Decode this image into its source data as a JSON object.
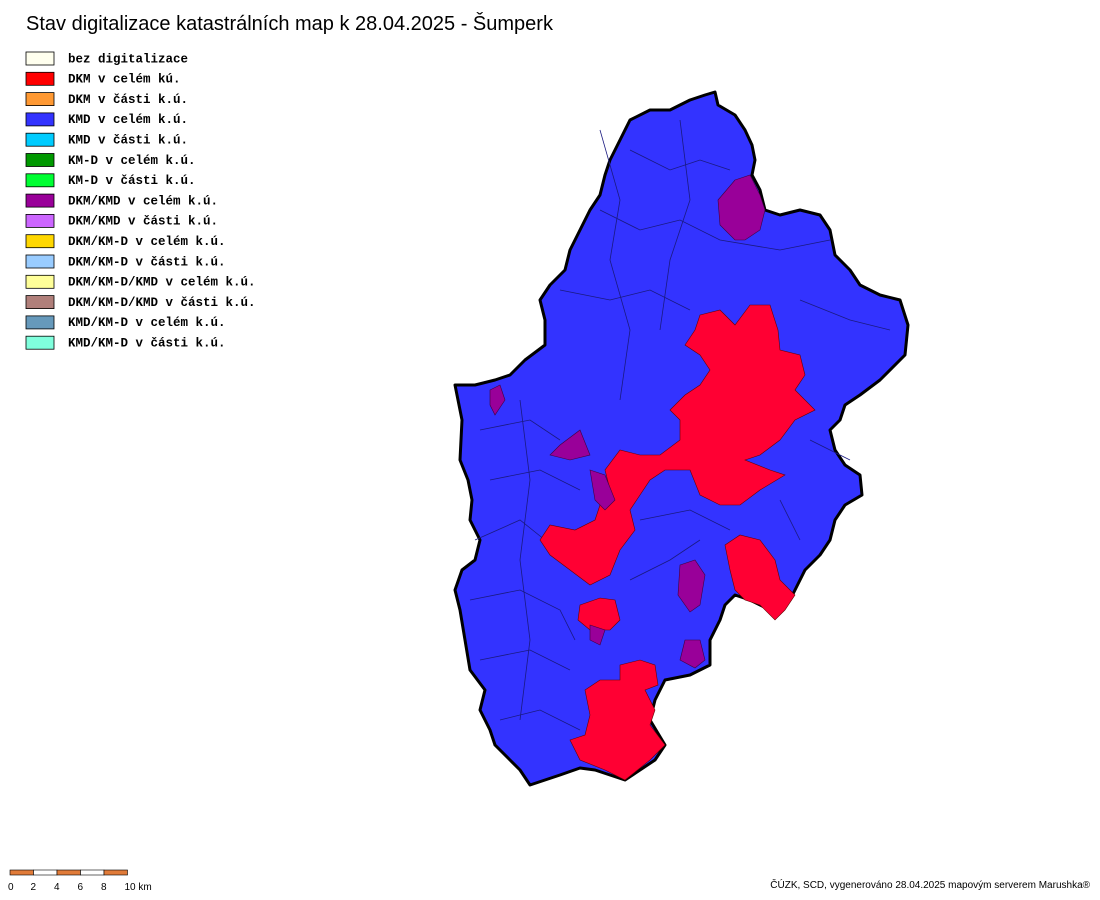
{
  "title": "Stav digitalizace katastrálních map k 28.04.2025 - Šumperk",
  "legend": [
    {
      "label": "bez digitalizace",
      "color": "#ffffee"
    },
    {
      "label": "DKM v celém kú.",
      "color": "#ff0000"
    },
    {
      "label": "DKM v části k.ú.",
      "color": "#ff9933"
    },
    {
      "label": "KMD v celém k.ú.",
      "color": "#3333ff"
    },
    {
      "label": "KMD v části k.ú.",
      "color": "#00ccff"
    },
    {
      "label": "KM-D v celém k.ú.",
      "color": "#009900"
    },
    {
      "label": "KM-D v části k.ú.",
      "color": "#00ff33"
    },
    {
      "label": "DKM/KMD v celém k.ú.",
      "color": "#990099"
    },
    {
      "label": "DKM/KMD v části k.ú.",
      "color": "#cc66ff"
    },
    {
      "label": "DKM/KM-D v celém k.ú.",
      "color": "#ffd700"
    },
    {
      "label": "DKM/KM-D v části k.ú.",
      "color": "#99ccff"
    },
    {
      "label": "DKM/KM-D/KMD v celém k.ú.",
      "color": "#ffff99"
    },
    {
      "label": "DKM/KM-D/KMD v části k.ú.",
      "color": "#b07f7a"
    },
    {
      "label": "KMD/KM-D v celém k.ú.",
      "color": "#6699bb"
    },
    {
      "label": "KMD/KM-D v části k.ú.",
      "color": "#80ffdd"
    }
  ],
  "scale_bar": {
    "labels": [
      "0",
      "2",
      "4",
      "6",
      "8",
      "10 km"
    ]
  },
  "credit": "ČÚZK, SCD, vygenerováno 28.04.2025 mapovým serverem Marushka®"
}
